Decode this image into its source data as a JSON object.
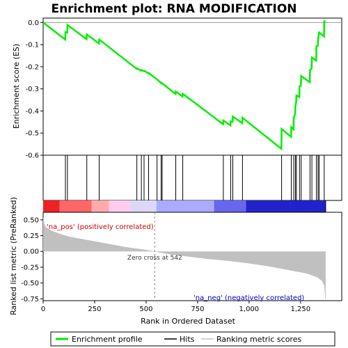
{
  "chart_data": {
    "type": "line",
    "title": "Enrichment plot: RNA MODIFICATION",
    "xlabel": "Rank in Ordered Dataset",
    "top_ylabel": "Enrichment score (ES)",
    "bottom_ylabel": "Ranked list metric (PreRanked)",
    "xlim": [
      0,
      1450
    ],
    "top_ylim": [
      -0.6,
      0.02
    ],
    "bottom_ylim": [
      -0.78,
      0.62
    ],
    "x_ticks": [
      0,
      250,
      500,
      750,
      1000,
      1250
    ],
    "x_tick_labels": [
      "0",
      "250",
      "500",
      "750",
      "1,000",
      "1,250"
    ],
    "top_y_ticks": [
      0.0,
      -0.1,
      -0.2,
      -0.3,
      -0.4,
      -0.5,
      -0.6
    ],
    "top_y_tick_labels": [
      "0.0",
      "-0.1",
      "-0.2",
      "-0.3",
      "-0.4",
      "-0.5",
      "-0.6"
    ],
    "bottom_y_ticks": [
      0.5,
      0.25,
      0.0,
      -0.25,
      -0.5,
      -0.75
    ],
    "bottom_y_tick_labels": [
      "0.50",
      "0.25",
      "0.00",
      "-0.25",
      "-0.50",
      "-0.75"
    ],
    "total_ranks": 1372,
    "zero_cross_rank": 542,
    "hits": [
      108,
      118,
      212,
      272,
      455,
      477,
      490,
      512,
      553,
      573,
      578,
      644,
      678,
      875,
      911,
      921,
      968,
      1158,
      1205,
      1217,
      1225,
      1230,
      1245,
      1253,
      1296,
      1305,
      1327,
      1335,
      1340,
      1365
    ],
    "es_points": [
      [
        0,
        0.0
      ],
      [
        107,
        -0.077
      ],
      [
        108,
        -0.043
      ],
      [
        117,
        -0.046
      ],
      [
        118,
        -0.011
      ],
      [
        211,
        -0.075
      ],
      [
        212,
        -0.054
      ],
      [
        271,
        -0.095
      ],
      [
        272,
        -0.077
      ],
      [
        454,
        -0.209
      ],
      [
        455,
        -0.207
      ],
      [
        476,
        -0.218
      ],
      [
        477,
        -0.215
      ],
      [
        489,
        -0.219
      ],
      [
        490,
        -0.218
      ],
      [
        511,
        -0.23
      ],
      [
        512,
        -0.228
      ],
      [
        552,
        -0.256
      ],
      [
        553,
        -0.257
      ],
      [
        572,
        -0.273
      ],
      [
        573,
        -0.272
      ],
      [
        577,
        -0.276
      ],
      [
        578,
        -0.275
      ],
      [
        643,
        -0.323
      ],
      [
        644,
        -0.312
      ],
      [
        677,
        -0.335
      ],
      [
        678,
        -0.322
      ],
      [
        874,
        -0.46
      ],
      [
        875,
        -0.443
      ],
      [
        910,
        -0.465
      ],
      [
        911,
        -0.447
      ],
      [
        920,
        -0.449
      ],
      [
        921,
        -0.425
      ],
      [
        967,
        -0.455
      ],
      [
        968,
        -0.431
      ],
      [
        1157,
        -0.571
      ],
      [
        1158,
        -0.481
      ],
      [
        1204,
        -0.517
      ],
      [
        1205,
        -0.473
      ],
      [
        1216,
        -0.483
      ],
      [
        1217,
        -0.432
      ],
      [
        1224,
        -0.412
      ],
      [
        1225,
        -0.378
      ],
      [
        1229,
        -0.358
      ],
      [
        1230,
        -0.33
      ],
      [
        1244,
        -0.337
      ],
      [
        1245,
        -0.288
      ],
      [
        1252,
        -0.285
      ],
      [
        1253,
        -0.242
      ],
      [
        1295,
        -0.27
      ],
      [
        1296,
        -0.215
      ],
      [
        1304,
        -0.207
      ],
      [
        1305,
        -0.158
      ],
      [
        1326,
        -0.172
      ],
      [
        1327,
        -0.108
      ],
      [
        1334,
        -0.105
      ],
      [
        1335,
        -0.075
      ],
      [
        1339,
        -0.05
      ],
      [
        1340,
        -0.045
      ],
      [
        1364,
        -0.063
      ],
      [
        1365,
        0.005
      ],
      [
        1372,
        0.005
      ]
    ],
    "metric_profile": [
      [
        0,
        0.55
      ],
      [
        5,
        0.44
      ],
      [
        15,
        0.38
      ],
      [
        40,
        0.33
      ],
      [
        80,
        0.28
      ],
      [
        120,
        0.24
      ],
      [
        200,
        0.19
      ],
      [
        300,
        0.13
      ],
      [
        400,
        0.07
      ],
      [
        500,
        0.025
      ],
      [
        542,
        0.0
      ],
      [
        600,
        -0.04
      ],
      [
        700,
        -0.08
      ],
      [
        800,
        -0.12
      ],
      [
        900,
        -0.15
      ],
      [
        1000,
        -0.19
      ],
      [
        1100,
        -0.24
      ],
      [
        1200,
        -0.3
      ],
      [
        1280,
        -0.35
      ],
      [
        1330,
        -0.41
      ],
      [
        1355,
        -0.47
      ],
      [
        1365,
        -0.55
      ],
      [
        1370,
        -0.75
      ],
      [
        1372,
        -0.77
      ]
    ],
    "ranking_bar_colors": [
      "#ee2222",
      "#ff6666",
      "#ffaaaa",
      "#ffccee",
      "#ddd8f8",
      "#aaaaff",
      "#6666ee",
      "#2222cc"
    ],
    "ranking_bar_breaks": [
      0,
      80,
      235,
      320,
      420,
      550,
      830,
      985,
      1200,
      1372
    ],
    "annotations": {
      "pos_label": "'na_pos' (positively correlated)",
      "neg_label": "'na_neg' (negatively correlated)",
      "zero_label": "Zero cross at 542"
    },
    "legend": [
      {
        "label": "Enrichment profile",
        "color": "#00ee00"
      },
      {
        "label": "Hits",
        "color": "#000000"
      },
      {
        "label": "Ranking metric scores",
        "color": "#c0c0c0"
      }
    ],
    "es_color": "#00ee00",
    "metric_color": "#c0c0c0"
  }
}
